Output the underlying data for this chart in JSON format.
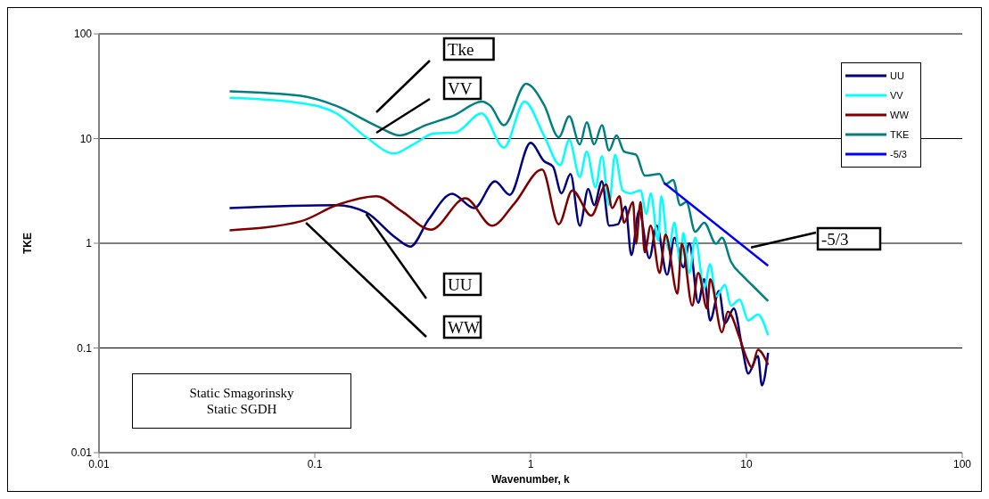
{
  "chart_data": {
    "type": "line",
    "xlabel": "Wavenumber, k",
    "ylabel": "TKE",
    "log": "xy",
    "xlim": [
      0.01,
      100
    ],
    "xticks": [
      0.01,
      0.1,
      1,
      10,
      100
    ],
    "ylim": [
      0.01,
      100
    ],
    "yticks": [
      0.01,
      0.1,
      1,
      10,
      100
    ],
    "grid": "y",
    "legend": "top right",
    "marker": "none",
    "line_style": "solid",
    "series": [
      {
        "name": "UU",
        "color": "#000080",
        "x": [
          0.0403,
          0.126,
          0.173,
          0.237,
          0.277,
          0.336,
          0.433,
          0.548,
          0.684,
          0.8,
          1.0,
          1.153,
          1.27,
          1.39,
          1.53,
          1.69,
          1.85,
          1.97,
          2.14,
          2.31,
          2.54,
          2.75,
          2.93,
          3.18,
          3.55,
          3.84,
          4.29,
          4.64,
          5.1,
          5.44,
          5.98,
          6.37,
          6.79,
          7.46,
          7.95,
          8.74,
          9.6,
          10.2,
          11.3,
          11.8,
          12.6
        ],
        "values": [
          2.17,
          2.31,
          1.97,
          1.13,
          0.93,
          1.67,
          2.96,
          2.17,
          3.9,
          2.9,
          9.1,
          6.1,
          5.4,
          3.0,
          4.58,
          1.47,
          3.3,
          2.31,
          3.9,
          1.47,
          1.52,
          2.24,
          0.77,
          2.03,
          0.72,
          1.47,
          0.5,
          1.13,
          0.59,
          1.0,
          0.27,
          0.455,
          0.183,
          0.35,
          0.172,
          0.238,
          0.096,
          0.057,
          0.084,
          0.044,
          0.09
        ]
      },
      {
        "name": "VV",
        "color": "#00ffff",
        "x": [
          0.0403,
          0.086,
          0.126,
          0.173,
          0.233,
          0.286,
          0.357,
          0.446,
          0.593,
          0.752,
          0.938,
          1.153,
          1.37,
          1.51,
          1.69,
          1.82,
          2.0,
          2.14,
          2.31,
          2.46,
          2.67,
          2.89,
          3.23,
          3.44,
          3.6,
          3.9,
          4.03,
          4.36,
          4.64,
          4.94,
          5.1,
          5.44,
          5.79,
          6.37,
          6.79,
          7.23,
          7.95,
          8.47,
          9.31,
          10.2,
          11.3,
          12.6
        ],
        "values": [
          24.5,
          21.8,
          17.4,
          10.3,
          7.2,
          8.8,
          11.2,
          11.4,
          17.4,
          8.2,
          22.6,
          10.7,
          5.57,
          9.7,
          4.3,
          7.5,
          3.42,
          6.8,
          2.31,
          7.0,
          3.2,
          3.0,
          3.2,
          1.9,
          3.0,
          1.06,
          2.81,
          0.87,
          1.57,
          0.63,
          1.25,
          0.52,
          1.13,
          0.375,
          0.63,
          0.31,
          0.4,
          0.254,
          0.29,
          0.183,
          0.209,
          0.132
        ]
      },
      {
        "name": "WW",
        "color": "#800000",
        "x": [
          0.0403,
          0.086,
          0.126,
          0.193,
          0.252,
          0.346,
          0.499,
          0.663,
          0.84,
          1.13,
          1.35,
          1.56,
          1.91,
          2.24,
          2.39,
          2.58,
          2.71,
          2.98,
          3.08,
          3.23,
          3.38,
          3.6,
          3.96,
          4.22,
          4.79,
          5.02,
          5.61,
          5.98,
          6.57,
          6.79,
          7.7,
          8.2,
          9.31,
          9.93,
          10.6,
          11.3,
          12.6
        ],
        "values": [
          1.33,
          1.62,
          2.31,
          2.81,
          2.03,
          1.35,
          2.69,
          1.47,
          2.39,
          5.05,
          1.52,
          3.2,
          1.84,
          3.65,
          2.17,
          2.81,
          1.57,
          2.47,
          0.99,
          2.47,
          0.82,
          1.47,
          0.52,
          1.21,
          0.33,
          0.99,
          0.254,
          0.52,
          0.238,
          0.455,
          0.141,
          0.222,
          0.124,
          0.084,
          0.065,
          0.096,
          0.069
        ]
      },
      {
        "name": "TKE",
        "color": "#008080",
        "x": [
          0.0403,
          0.086,
          0.126,
          0.196,
          0.248,
          0.325,
          0.446,
          0.593,
          0.652,
          0.752,
          0.953,
          1.153,
          1.35,
          1.51,
          1.69,
          1.82,
          1.97,
          2.14,
          2.31,
          2.5,
          2.71,
          3.08,
          3.38,
          3.96,
          4.22,
          4.57,
          4.94,
          5.27,
          5.79,
          6.37,
          7.23,
          7.7,
          8.47,
          9.6,
          10.6,
          12.6
        ],
        "values": [
          28.3,
          25.6,
          20.5,
          13.0,
          10.7,
          13.4,
          16.8,
          22.6,
          20.5,
          13.4,
          33.3,
          21.1,
          10.3,
          16.3,
          8.8,
          14.3,
          8.8,
          13.4,
          7.7,
          10.7,
          7.5,
          7.0,
          4.43,
          4.58,
          3.65,
          4.02,
          2.31,
          2.47,
          1.29,
          1.57,
          0.99,
          1.13,
          0.67,
          0.49,
          0.4,
          0.28
        ]
      },
      {
        "name": "-5/3",
        "color": "#0000ff",
        "x": [
          4.15,
          12.6
        ],
        "values": [
          3.77,
          0.61
        ]
      }
    ],
    "annotations": [
      "Tke",
      "VV",
      {
        "text": "UU",
        "x": 0.173,
        "y": 1.9
      },
      {
        "text": "WW",
        "x": 0.091,
        "y": 1.57
      },
      {
        "text": "-5/3",
        "x": 10.5,
        "y": 0.91
      },
      "Static Smagorinsky\nStatic SGDH"
    ]
  }
}
